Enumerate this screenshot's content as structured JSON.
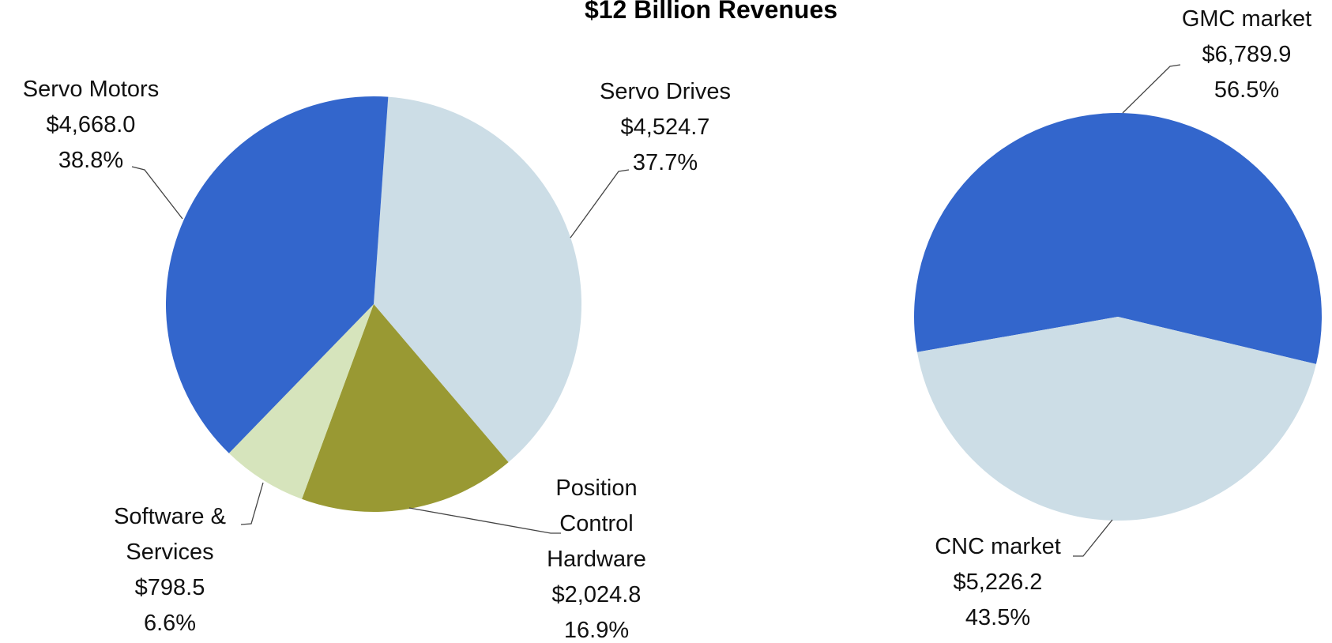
{
  "title": "$12 Billion Revenues",
  "chart_data": [
    {
      "type": "pie",
      "categories": [
        "Servo Drives",
        "Position Control Hardware",
        "Software & Services",
        "Servo Motors"
      ],
      "values": [
        4524.7,
        2024.8,
        798.5,
        4668.0
      ],
      "value_labels": [
        "$4,524.7",
        "$2,024.8",
        "$798.5",
        "$4,668.0"
      ],
      "percents": [
        37.7,
        16.9,
        6.6,
        38.8
      ],
      "percent_labels": [
        "37.7%",
        "16.9%",
        "6.6%",
        "38.8%"
      ],
      "colors": [
        "#ccdde6",
        "#999933",
        "#d6e4bc",
        "#3366cc"
      ]
    },
    {
      "type": "pie",
      "categories": [
        "GMC market",
        "CNC market"
      ],
      "values": [
        6789.9,
        5226.2
      ],
      "value_labels": [
        "$6,789.9",
        "$5,226.2"
      ],
      "percents": [
        56.5,
        43.5
      ],
      "percent_labels": [
        "56.5%",
        "43.5%"
      ],
      "colors": [
        "#3366cc",
        "#ccdde6"
      ]
    }
  ]
}
